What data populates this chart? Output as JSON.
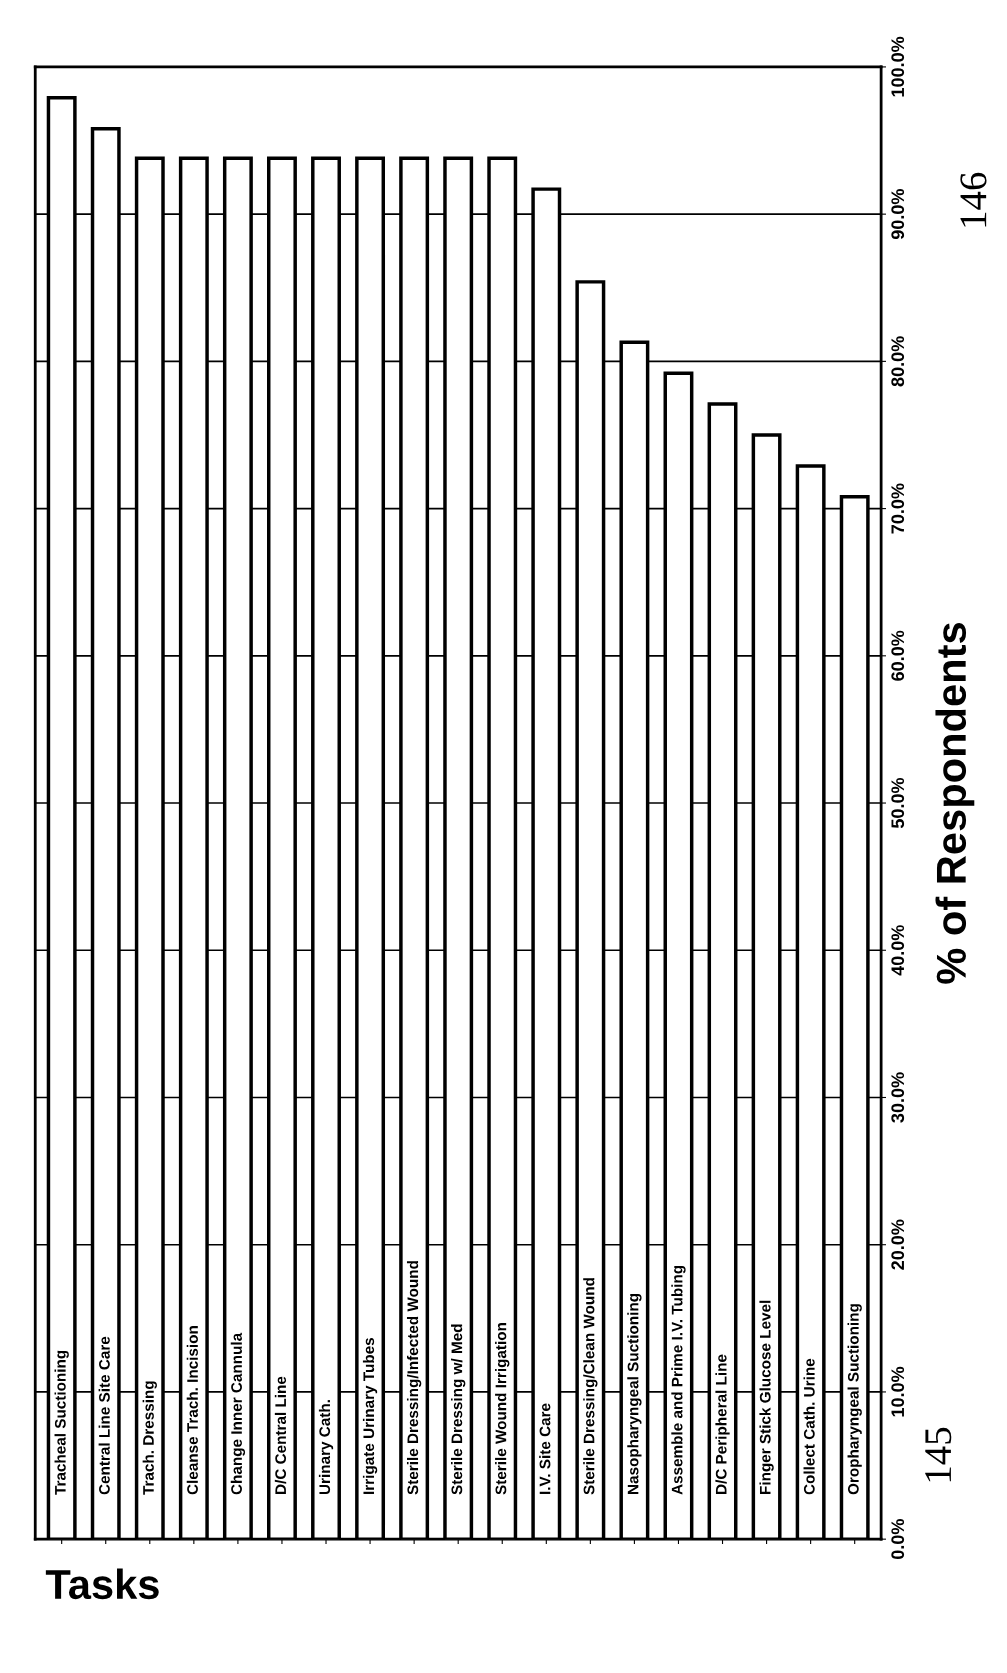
{
  "chart_data": {
    "type": "bar",
    "xlabel": "Tasks",
    "ylabel": "% of Respondents",
    "categories": [
      "Tracheal Suctioning",
      "Central Line Site Care",
      "Trach. Dressing",
      "Cleanse Trach. Incision",
      "Change Inner Cannula",
      "D/C Central Line",
      "Urinary Cath.",
      "Irrigate Urinary Tubes",
      "Sterile Dressing/Infected Wound",
      "Sterile Dressing w/ Med",
      "Sterile Wound Irrigation",
      "I.V. Site Care",
      "Sterile Dressing/Clean Wound",
      "Nasopharyngeal Suctioning",
      "Assemble and Prime I.V. Tubing",
      "D/C Peripheral Line",
      "Finger Stick Glucose Level",
      "Collect Cath. Urine",
      "Oropharyngeal Suctioning"
    ],
    "values": [
      97.9,
      95.8,
      93.8,
      93.8,
      93.8,
      93.8,
      93.8,
      93.8,
      93.8,
      93.8,
      93.8,
      91.7,
      85.4,
      81.3,
      79.2,
      77.1,
      75.0,
      72.9,
      70.8
    ],
    "color": "#ffffff",
    "ylim": [
      0,
      100
    ],
    "yticks": [
      {
        "value": 0,
        "label": "0.0%"
      },
      {
        "value": 10,
        "label": "10.0%"
      },
      {
        "value": 20,
        "label": "20.0%"
      },
      {
        "value": 30,
        "label": "30.0%"
      },
      {
        "value": 40,
        "label": "40.0%"
      },
      {
        "value": 50,
        "label": "50.0%"
      },
      {
        "value": 60,
        "label": "60.0%"
      },
      {
        "value": 70,
        "label": "70.0%"
      },
      {
        "value": 80,
        "label": "80.0%"
      },
      {
        "value": 90,
        "label": "90.0%"
      },
      {
        "value": 100,
        "label": "100.0%"
      }
    ],
    "grid": "y",
    "annotations": [
      "145",
      "146"
    ]
  }
}
